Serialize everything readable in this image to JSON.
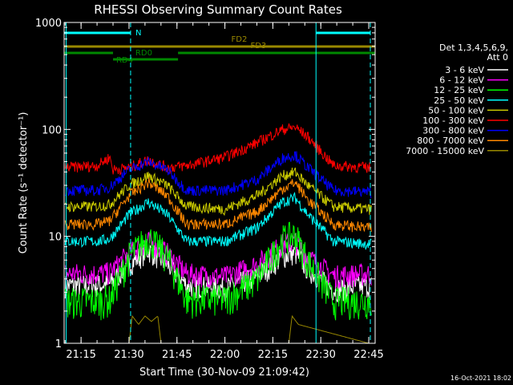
{
  "chart_data": {
    "type": "line",
    "title": "RHESSI Observing Summary Count Rates",
    "xlabel": "Start Time (30-Nov-09 21:09:42)",
    "ylabel": "Count Rate (s⁻¹ detector⁻¹)",
    "yscale": "log",
    "ylim": [
      1,
      1000
    ],
    "xlim": [
      "21:09:42",
      "22:47:00"
    ],
    "x_ticks": [
      "21:15",
      "21:30",
      "21:45",
      "22:00",
      "22:15",
      "22:30",
      "22:45"
    ],
    "y_ticks": [
      "1",
      "10",
      "100",
      "1000"
    ],
    "legend_header": [
      "Det 1,3,4,5,6,9,",
      "Att 0"
    ],
    "timestamp": "16-Oct-2021 18:02",
    "grid": false,
    "series": [
      {
        "name": "3 - 6 keV",
        "color": "#ffffff",
        "x": [
          "21:10",
          "21:20",
          "21:24",
          "21:30",
          "21:36",
          "21:42",
          "21:48",
          "22:00",
          "22:10",
          "22:18",
          "22:22",
          "22:26",
          "22:34",
          "22:45"
        ],
        "values": [
          3.5,
          3.5,
          3.6,
          5.5,
          7.5,
          5.5,
          3.5,
          3.3,
          4.2,
          6.5,
          7.0,
          5.0,
          3.2,
          3.5
        ]
      },
      {
        "name": "6 - 12 keV",
        "color": "#ff00ff",
        "x": [
          "21:10",
          "21:20",
          "21:24",
          "21:30",
          "21:36",
          "21:42",
          "21:48",
          "22:00",
          "22:10",
          "22:18",
          "22:22",
          "22:26",
          "22:34",
          "22:45"
        ],
        "values": [
          4.5,
          4.5,
          4.6,
          7,
          9,
          7,
          4.5,
          4.2,
          5.5,
          8.5,
          9,
          6.5,
          4.3,
          4.5
        ]
      },
      {
        "name": "12 - 25 keV",
        "color": "#00ff00",
        "x": [
          "21:10",
          "21:20",
          "21:24",
          "21:30",
          "21:36",
          "21:42",
          "21:48",
          "22:00",
          "22:10",
          "22:18",
          "22:22",
          "22:26",
          "22:34",
          "22:45"
        ],
        "values": [
          2.5,
          2.5,
          2.6,
          6.5,
          10,
          6.5,
          2.6,
          2.6,
          4.0,
          9.5,
          10.5,
          6.0,
          2.5,
          2.5
        ]
      },
      {
        "name": "25 - 50 keV",
        "color": "#00ffff",
        "x": [
          "21:10",
          "21:20",
          "21:24",
          "21:30",
          "21:36",
          "21:42",
          "21:48",
          "22:00",
          "22:10",
          "22:18",
          "22:22",
          "22:26",
          "22:34",
          "22:45"
        ],
        "values": [
          9,
          9,
          9.5,
          16,
          21,
          16,
          9,
          9,
          12,
          21,
          23,
          16,
          9,
          8.5
        ]
      },
      {
        "name": "50 - 100 keV",
        "color": "#cccc00",
        "x": [
          "21:10",
          "21:20",
          "21:24",
          "21:30",
          "21:36",
          "21:42",
          "21:48",
          "22:00",
          "22:10",
          "22:18",
          "22:22",
          "22:26",
          "22:34",
          "22:45"
        ],
        "values": [
          19,
          19,
          20,
          30,
          37,
          30,
          19,
          18,
          24,
          37,
          40,
          30,
          19,
          18
        ]
      },
      {
        "name": "100 - 300 keV",
        "color": "#ff0000",
        "x": [
          "21:10",
          "21:20",
          "21:24",
          "21:25",
          "21:30",
          "21:36",
          "21:42",
          "21:48",
          "22:00",
          "22:10",
          "22:18",
          "22:22",
          "22:26",
          "22:34",
          "22:45"
        ],
        "values": [
          44,
          46,
          55,
          42,
          44,
          52,
          44,
          46,
          55,
          75,
          100,
          105,
          85,
          46,
          44
        ]
      },
      {
        "name": "300 - 800 keV",
        "color": "#0000ff",
        "x": [
          "21:10",
          "21:20",
          "21:24",
          "21:30",
          "21:36",
          "21:42",
          "21:48",
          "22:00",
          "22:10",
          "22:18",
          "22:22",
          "22:26",
          "22:34",
          "22:45"
        ],
        "values": [
          27,
          27,
          29,
          42,
          50,
          42,
          27,
          27,
          34,
          54,
          58,
          44,
          27,
          26
        ]
      },
      {
        "name": "800 - 7000 keV",
        "color": "#ff8800",
        "x": [
          "21:10",
          "21:20",
          "21:24",
          "21:30",
          "21:36",
          "21:42",
          "21:48",
          "22:00",
          "22:10",
          "22:18",
          "22:22",
          "22:26",
          "22:34",
          "22:45"
        ],
        "values": [
          13,
          13,
          14,
          24,
          32,
          24,
          13,
          13,
          17,
          28,
          32,
          22,
          13,
          12
        ]
      },
      {
        "name": "7000 - 15000 keV",
        "color": "#998800",
        "x": [
          "21:10",
          "21:30",
          "21:31",
          "21:33",
          "21:35",
          "21:37",
          "21:39",
          "21:40",
          "22:15",
          "22:20",
          "22:21",
          "22:23",
          "22:45"
        ],
        "values": [
          1,
          1,
          1.8,
          1.5,
          1.8,
          1.6,
          1.8,
          1,
          1,
          1,
          1.8,
          1.5,
          1
        ]
      }
    ],
    "flags": [
      {
        "label": "N",
        "color": "#00ffff",
        "segments": [
          [
            "21:09:42",
            "21:30:30"
          ],
          [
            "22:28:30",
            "22:45:30"
          ]
        ]
      },
      {
        "label": "FD2",
        "color": "#998800",
        "segments": [
          [
            "21:09:42",
            "22:47:00"
          ]
        ]
      },
      {
        "label": "FD3",
        "color": "#998800",
        "segments": [
          [
            "21:09:42",
            "22:47:00"
          ]
        ]
      },
      {
        "label": "RD0",
        "color": "#008800",
        "segments": [
          [
            "21:09:42",
            "22:47:00"
          ]
        ]
      },
      {
        "label": "RD4",
        "color": "#008800",
        "segments": [
          [
            "21:25:00",
            "21:45:20"
          ]
        ]
      }
    ]
  }
}
